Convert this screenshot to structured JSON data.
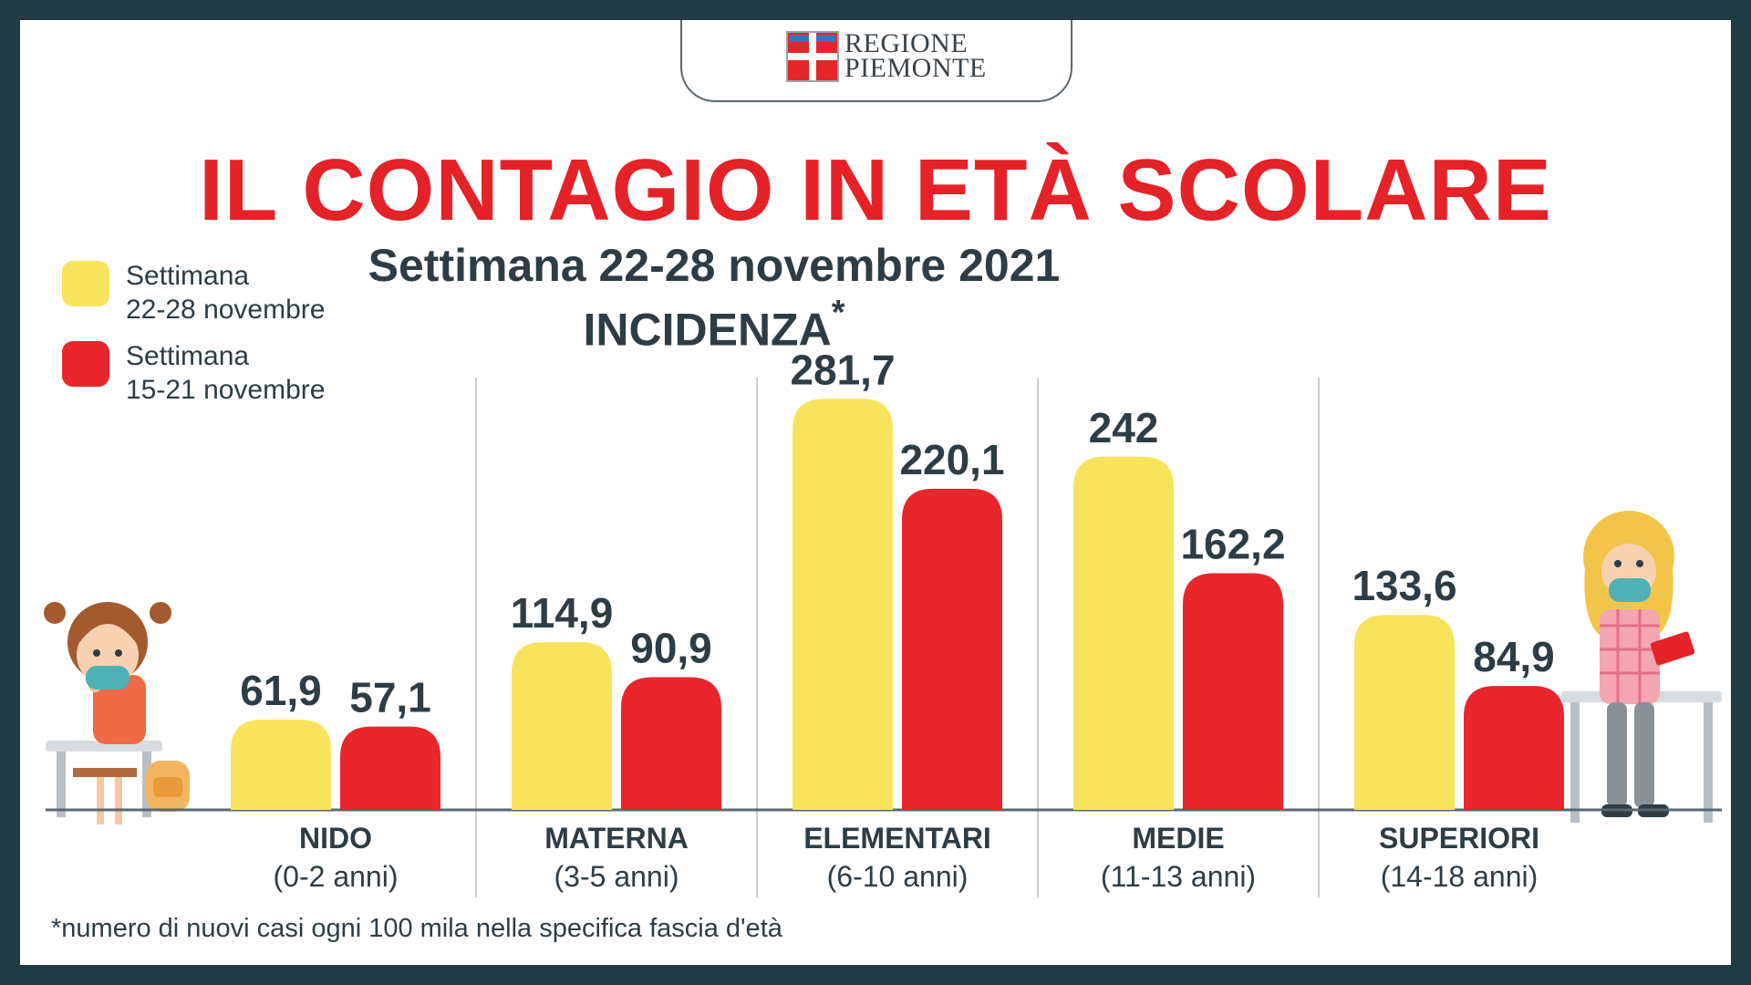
{
  "logo": {
    "line1": "REGIONE",
    "line2": "PIEMONTE"
  },
  "title": "IL CONTAGIO IN ETÀ SCOLARE",
  "subtitle": "Settimana 22-28 novembre 2021",
  "metric": {
    "label": "INCIDENZA",
    "mark": "*"
  },
  "legend": [
    {
      "line1": "Settimana",
      "line2": "22-28 novembre",
      "color": "#f8e45c"
    },
    {
      "line1": "Settimana",
      "line2": "15-21 novembre",
      "color": "#e8262b"
    }
  ],
  "chart_data": {
    "type": "bar",
    "categories": [
      "NIDO",
      "MATERNA",
      "ELEMENTARI",
      "MEDIE",
      "SUPERIORI"
    ],
    "category_ranges": [
      "(0-2 anni)",
      "(3-5 anni)",
      "(6-10 anni)",
      "(11-13 anni)",
      "(14-18 anni)"
    ],
    "series": [
      {
        "name": "Settimana 22-28 novembre",
        "color": "#f8e45c",
        "values": [
          61.9,
          114.9,
          281.7,
          242,
          133.6
        ],
        "labels": [
          "61,9",
          "114,9",
          "281,7",
          "242",
          "133,6"
        ]
      },
      {
        "name": "Settimana 15-21 novembre",
        "color": "#e8262b",
        "values": [
          57.1,
          90.9,
          220.1,
          162.2,
          84.9
        ],
        "labels": [
          "57,1",
          "90,9",
          "220,1",
          "162,2",
          "84,9"
        ]
      }
    ],
    "ylim": [
      0,
      300
    ],
    "grid": false,
    "legend_position": "top-left"
  },
  "footnote": "*numero di nuovi casi ogni 100 mila nella specifica fascia d'età"
}
